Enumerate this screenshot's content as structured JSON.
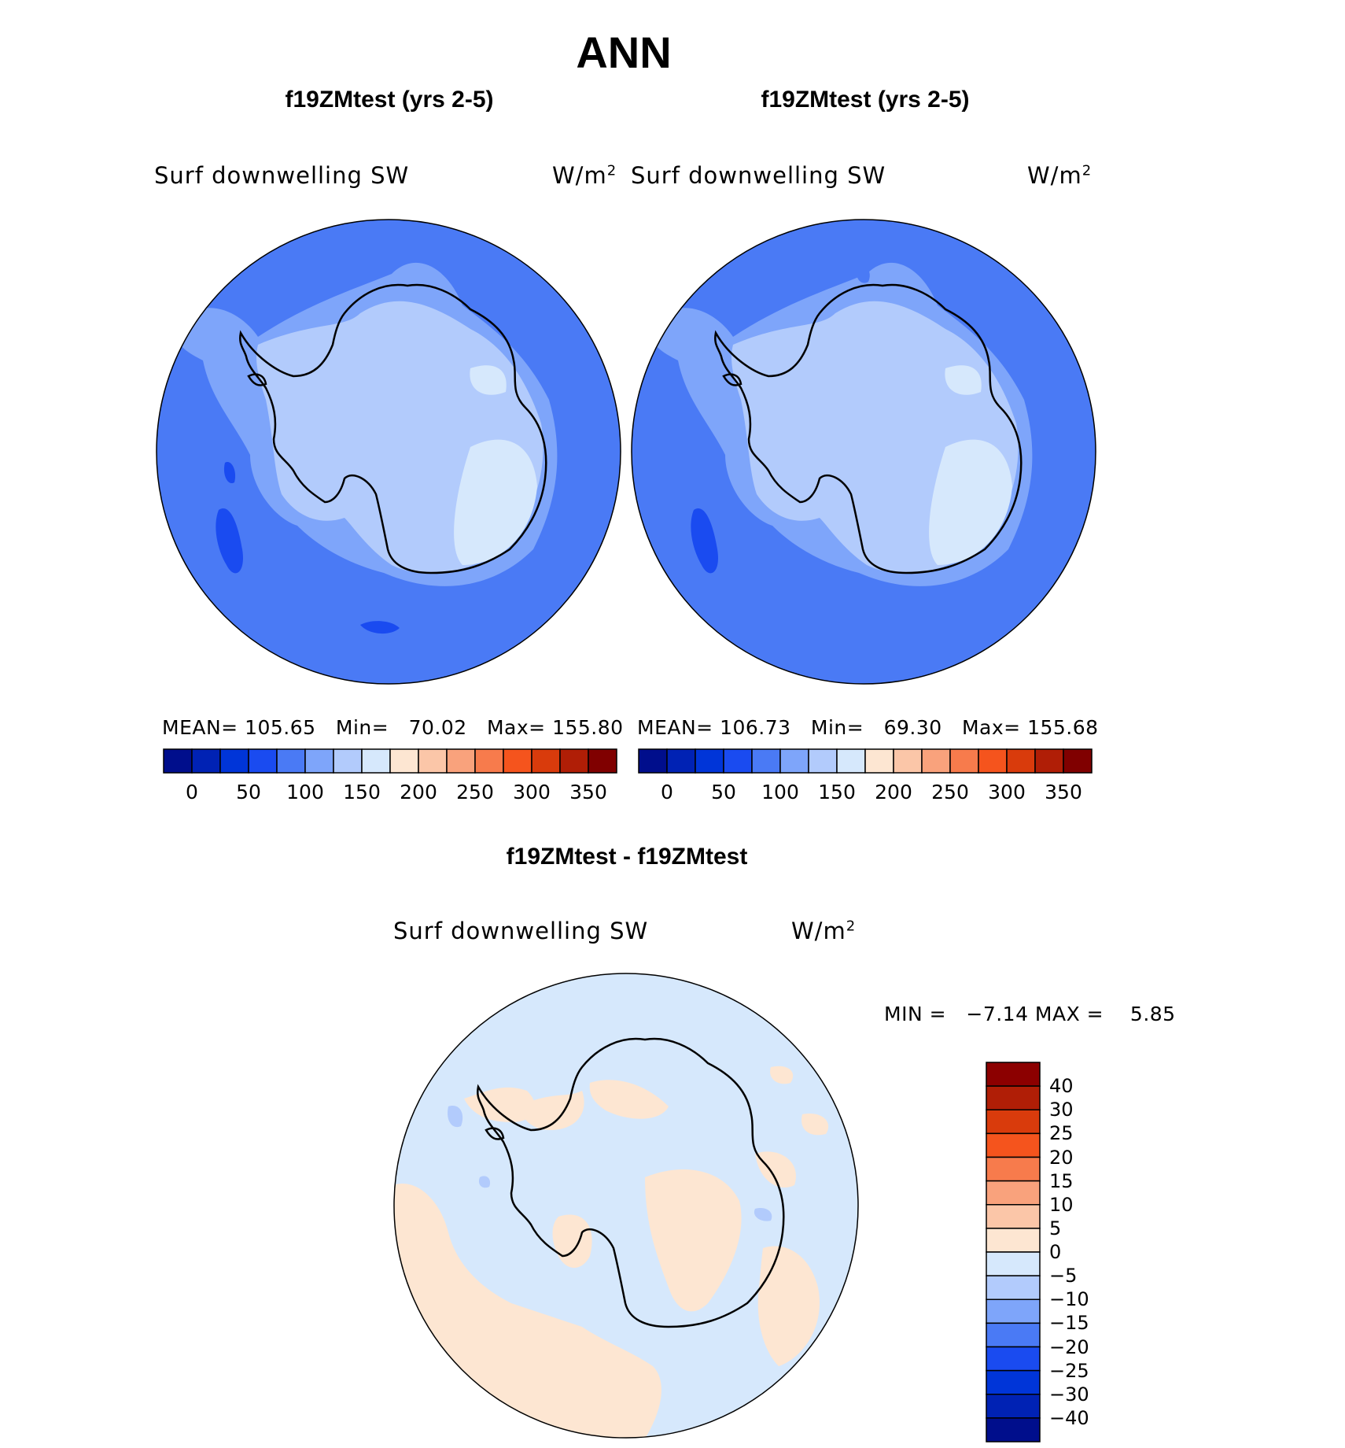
{
  "title": "ANN",
  "panels": [
    {
      "case": "f19ZMtest (yrs 2-5)",
      "field": "Surf downwelling SW",
      "units": "W/m",
      "units_sup": "2",
      "mean_label": "MEAN=",
      "mean": "105.65",
      "min_label": "Min=",
      "min": "70.02",
      "max_label": "Max=",
      "max": "155.80"
    },
    {
      "case": "f19ZMtest (yrs 2-5)",
      "field": "Surf downwelling SW",
      "units": "W/m",
      "units_sup": "2",
      "mean_label": "MEAN=",
      "mean": "106.73",
      "min_label": "Min=",
      "min": "69.30",
      "max_label": "Max=",
      "max": "155.68"
    }
  ],
  "colorbar": {
    "colors": [
      "#000e8c",
      "#0022b4",
      "#0035d8",
      "#1a4bf0",
      "#4a7af5",
      "#7ea5fa",
      "#b2cbfc",
      "#d6e8fc",
      "#fde6d2",
      "#fbc6a8",
      "#f9a27c",
      "#f77b4c",
      "#f5541d",
      "#d93b0c",
      "#b01e06",
      "#800000"
    ],
    "ticks": [
      "0",
      "50",
      "100",
      "150",
      "200",
      "250",
      "300",
      "350"
    ]
  },
  "diff": {
    "title": "f19ZMtest - f19ZMtest",
    "field": "Surf downwelling SW",
    "units": "W/m",
    "units_sup": "2",
    "minmax_label": "MIN =   −7.14 MAX =    5.85",
    "colors_top_to_bottom": [
      "#8c0000",
      "#b01e06",
      "#d93b0c",
      "#f5541d",
      "#f77b4c",
      "#f9a27c",
      "#fbc6a8",
      "#fde6d2",
      "#d6e8fc",
      "#b2cbfc",
      "#7ea5fa",
      "#4a7af5",
      "#1a4bf0",
      "#0035d8",
      "#0022b4",
      "#000e8c"
    ],
    "ticks": [
      "40",
      "30",
      "25",
      "20",
      "15",
      "10",
      "5",
      "0",
      "−5",
      "−10",
      "−15",
      "−20",
      "−25",
      "−30",
      "−40"
    ]
  },
  "colors": {
    "ocean": "#4a7af5",
    "shelf": "#7ea5fa",
    "ice": "#b2cbfc",
    "plateau": "#d6e8fc",
    "deep": "#1a4bf0",
    "diff_bg": "#d6e8fc",
    "diff_pos": "#fde6d2",
    "diff_neg": "#b2cbfc"
  }
}
